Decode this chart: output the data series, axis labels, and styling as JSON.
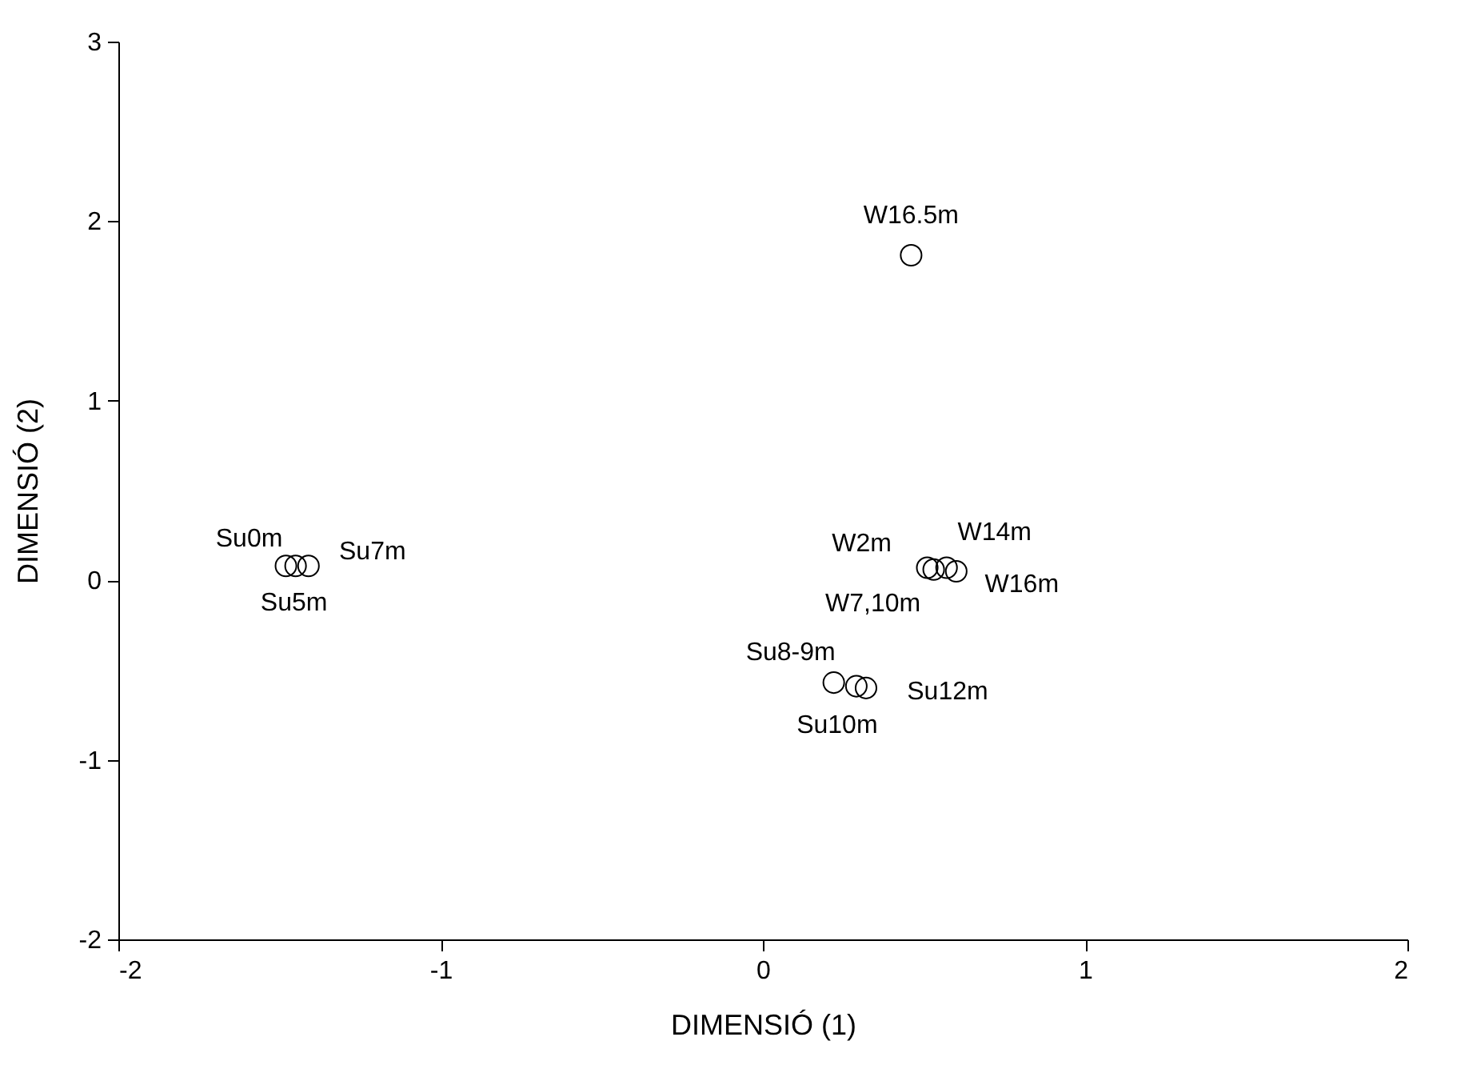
{
  "chart_data": {
    "type": "scatter",
    "xlabel": "DIMENSIÓ (1)",
    "ylabel": "DIMENSIÓ (2)",
    "marker": "circle",
    "grid": false,
    "xlim": [
      -2,
      2
    ],
    "ylim": [
      -2,
      3
    ],
    "xticks": [
      -2,
      -1,
      0,
      1,
      2
    ],
    "yticks": [
      -2,
      -1,
      0,
      1,
      2,
      3
    ],
    "series": [
      {
        "color": "#000000",
        "x": [
          -1.48,
          -1.45,
          -1.41,
          0.46,
          0.51,
          0.53,
          0.57,
          0.6,
          0.22,
          0.29,
          0.32
        ],
        "values": [
          0.08,
          0.08,
          0.08,
          1.81,
          0.07,
          0.06,
          0.07,
          0.05,
          -0.57,
          -0.59,
          -0.6
        ]
      }
    ],
    "annotations": [
      {
        "text": "Su0m",
        "x": -1.48,
        "y": 0.08
      },
      {
        "text": "Su5m",
        "x": -1.45,
        "y": 0.08
      },
      {
        "text": "Su7m",
        "x": -1.41,
        "y": 0.08
      },
      {
        "text": "W16.5m",
        "x": 0.46,
        "y": 1.81
      },
      {
        "text": "W2m",
        "x": 0.51,
        "y": 0.07
      },
      {
        "text": "W7,10m",
        "x": 0.53,
        "y": 0.06
      },
      {
        "text": "W14m",
        "x": 0.57,
        "y": 0.07
      },
      {
        "text": "W16m",
        "x": 0.6,
        "y": 0.05
      },
      {
        "text": "Su8-9m",
        "x": 0.22,
        "y": -0.57
      },
      {
        "text": "Su10m",
        "x": 0.29,
        "y": -0.59
      },
      {
        "text": "Su12m",
        "x": 0.32,
        "y": -0.6
      }
    ]
  }
}
